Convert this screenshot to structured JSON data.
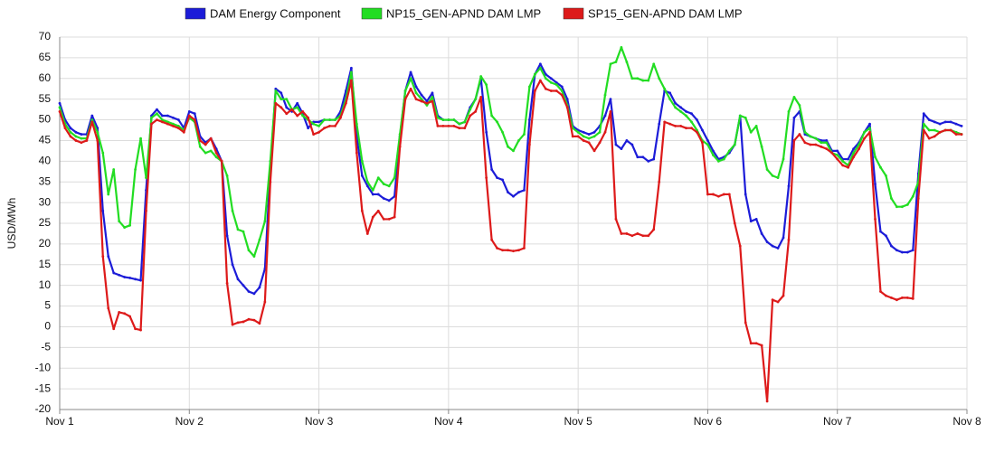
{
  "chart_data": {
    "type": "line",
    "y_label": "USD/MWh",
    "grid": true,
    "legend": "top",
    "xlim": [
      0,
      168
    ],
    "xticks": [
      {
        "value": 0,
        "label": "Nov 1"
      },
      {
        "value": 24,
        "label": "Nov 2"
      },
      {
        "value": 48,
        "label": "Nov 3"
      },
      {
        "value": 72,
        "label": "Nov 4"
      },
      {
        "value": 96,
        "label": "Nov 5"
      },
      {
        "value": 120,
        "label": "Nov 6"
      },
      {
        "value": 144,
        "label": "Nov 7"
      },
      {
        "value": 168,
        "label": "Nov 8"
      }
    ],
    "ylim": [
      -20,
      70
    ],
    "yticks": [
      -20,
      -15,
      -10,
      -5,
      0,
      5,
      10,
      15,
      20,
      25,
      30,
      35,
      40,
      45,
      50,
      55,
      60,
      65,
      70
    ],
    "x": [
      0,
      1,
      2,
      3,
      4,
      5,
      6,
      7,
      8,
      9,
      10,
      11,
      12,
      13,
      14,
      15,
      16,
      17,
      18,
      19,
      20,
      21,
      22,
      23,
      24,
      25,
      26,
      27,
      28,
      29,
      30,
      31,
      32,
      33,
      34,
      35,
      36,
      37,
      38,
      39,
      40,
      41,
      42,
      43,
      44,
      45,
      46,
      47,
      48,
      49,
      50,
      51,
      52,
      53,
      54,
      55,
      56,
      57,
      58,
      59,
      60,
      61,
      62,
      63,
      64,
      65,
      66,
      67,
      68,
      69,
      70,
      71,
      72,
      73,
      74,
      75,
      76,
      77,
      78,
      79,
      80,
      81,
      82,
      83,
      84,
      85,
      86,
      87,
      88,
      89,
      90,
      91,
      92,
      93,
      94,
      95,
      96,
      97,
      98,
      99,
      100,
      101,
      102,
      103,
      104,
      105,
      106,
      107,
      108,
      109,
      110,
      111,
      112,
      113,
      114,
      115,
      116,
      117,
      118,
      119,
      120,
      121,
      122,
      123,
      124,
      125,
      126,
      127,
      128,
      129,
      130,
      131,
      132,
      133,
      134,
      135,
      136,
      137,
      138,
      139,
      140,
      141,
      142,
      143,
      144,
      145,
      146,
      147,
      148,
      149,
      150,
      151,
      152,
      153,
      154,
      155,
      156,
      157,
      158,
      159,
      160,
      161,
      162,
      163,
      164,
      165,
      166,
      167
    ],
    "series": [
      {
        "name": "DAM Energy Component",
        "color": "#1c1cd8",
        "values": [
          54,
          50,
          48,
          47,
          46.5,
          46.5,
          51,
          48,
          28,
          17,
          13,
          12.5,
          12,
          11.8,
          11.5,
          11.2,
          33,
          51,
          52.5,
          51,
          51,
          50.5,
          50,
          48,
          52,
          51.5,
          46,
          44.5,
          45.5,
          43,
          40,
          22,
          15,
          11.5,
          10,
          8.5,
          8,
          9.5,
          14,
          38,
          57.5,
          56.5,
          53,
          52,
          54,
          51.5,
          48,
          49.5,
          49.5,
          50,
          50,
          50,
          52,
          57,
          62.5,
          46,
          36.5,
          34,
          32,
          32,
          31,
          30.5,
          31.5,
          46,
          57,
          61.5,
          58,
          56,
          54.5,
          56.5,
          51,
          50,
          50,
          50,
          49,
          49.5,
          53,
          55,
          60,
          47,
          38,
          36,
          35.5,
          32.5,
          31.5,
          32.5,
          33,
          50,
          61,
          63.5,
          61,
          60,
          59,
          58,
          55,
          48.5,
          47.5,
          47,
          46.5,
          47,
          48.5,
          51,
          55,
          44,
          43,
          45,
          44,
          41,
          41,
          40,
          40.5,
          49,
          57,
          56.5,
          54,
          53,
          52,
          51.5,
          50,
          47.5,
          45,
          42.5,
          40.5,
          41,
          42,
          44,
          51,
          32,
          25.5,
          26,
          22.5,
          20.5,
          19.5,
          19,
          21.5,
          34,
          50.5,
          52,
          46.5,
          46,
          45.5,
          45,
          45,
          42.5,
          42.5,
          40.5,
          40.5,
          43,
          44.5,
          47,
          49,
          34.5,
          23,
          22,
          19.5,
          18.5,
          18,
          18,
          18.5,
          37,
          51.5,
          50,
          49.5,
          49,
          49.5,
          49.5,
          49,
          48.5
        ]
      },
      {
        "name": "NP15_GEN-APND DAM LMP",
        "color": "#22dd22",
        "values": [
          53,
          49,
          47,
          46,
          45.5,
          45.5,
          50,
          47,
          42,
          32,
          38,
          25.5,
          24,
          24.5,
          38,
          45.5,
          36,
          50.5,
          51.5,
          50,
          49.5,
          49,
          48.5,
          47.5,
          50.5,
          49.5,
          43.5,
          42,
          42.5,
          41,
          40,
          36.5,
          28,
          23.5,
          23,
          18.5,
          17,
          21,
          25.5,
          40,
          57,
          55,
          55,
          52.5,
          53,
          51,
          50,
          49,
          48.5,
          50,
          50,
          50,
          51,
          55,
          61.5,
          49,
          40,
          35,
          33,
          36,
          34.5,
          34,
          36,
          46.5,
          57,
          60,
          56.5,
          55,
          53.5,
          55.5,
          50.5,
          50,
          50,
          50,
          49,
          49.5,
          52.5,
          55,
          60.5,
          58.5,
          51,
          49.5,
          47,
          43.5,
          42.5,
          45,
          46.5,
          58,
          61,
          62.5,
          60,
          59,
          58.5,
          57,
          53.5,
          48,
          47,
          46,
          45.5,
          46,
          47,
          56,
          63.5,
          64,
          67.5,
          64,
          60,
          60,
          59.5,
          59.5,
          63.5,
          60,
          57.5,
          55,
          53,
          52,
          51,
          49.5,
          47.5,
          45,
          44,
          41.5,
          40,
          40.5,
          42.5,
          44,
          51,
          50.5,
          47,
          48.5,
          43.5,
          38,
          36.5,
          36,
          40.5,
          52,
          55.5,
          53.5,
          47,
          46,
          45.5,
          44.5,
          44.5,
          42,
          41.5,
          40,
          39,
          42,
          44,
          47,
          48,
          41,
          38.5,
          36.5,
          31,
          29,
          29,
          29.5,
          31.5,
          35,
          49,
          47.5,
          47.5,
          47,
          47.5,
          47.5,
          47,
          46.5
        ]
      },
      {
        "name": "SP15_GEN-APND DAM LMP",
        "color": "#dd1a1a",
        "values": [
          52,
          48,
          46,
          45,
          44.5,
          45,
          49.5,
          45,
          17,
          4.5,
          -0.5,
          3.5,
          3.2,
          2.5,
          -0.5,
          -0.8,
          28,
          49,
          50,
          49.5,
          49,
          48.5,
          48,
          47,
          51,
          50,
          45,
          44,
          45.5,
          42,
          40,
          10.5,
          0.5,
          1,
          1.2,
          1.8,
          1.6,
          0.8,
          6,
          35,
          54,
          53,
          51.5,
          52.5,
          51,
          52,
          50.5,
          46.5,
          47,
          48,
          48.5,
          48.5,
          50.5,
          54,
          59.5,
          42,
          28,
          22.5,
          26.5,
          28,
          26,
          26,
          26.5,
          43.5,
          55,
          57.5,
          55,
          54.5,
          54,
          54.5,
          48.5,
          48.5,
          48.5,
          48.5,
          48,
          48,
          51,
          52,
          55.5,
          36,
          21,
          19,
          18.5,
          18.5,
          18.3,
          18.5,
          19,
          44,
          57,
          59.5,
          57.5,
          57,
          57,
          56,
          53,
          46,
          46,
          45,
          44.5,
          42.5,
          44.5,
          47,
          52,
          26,
          22.5,
          22.5,
          22,
          22.5,
          22,
          22,
          23.5,
          35,
          49.5,
          49,
          48.5,
          48.5,
          48,
          48,
          47,
          44.5,
          32,
          32,
          31.5,
          32,
          32,
          25,
          19.5,
          1,
          -4,
          -4,
          -4.5,
          -18,
          6.5,
          6,
          7.5,
          21,
          45,
          46.5,
          44.5,
          44,
          44,
          43.5,
          43,
          42,
          40.5,
          39,
          38.5,
          41,
          43,
          45.5,
          47,
          26,
          8.5,
          7.5,
          7,
          6.5,
          7,
          7,
          6.8,
          31,
          47.5,
          45.5,
          46,
          47,
          47.5,
          47.5,
          46.5,
          46.5
        ]
      }
    ]
  }
}
